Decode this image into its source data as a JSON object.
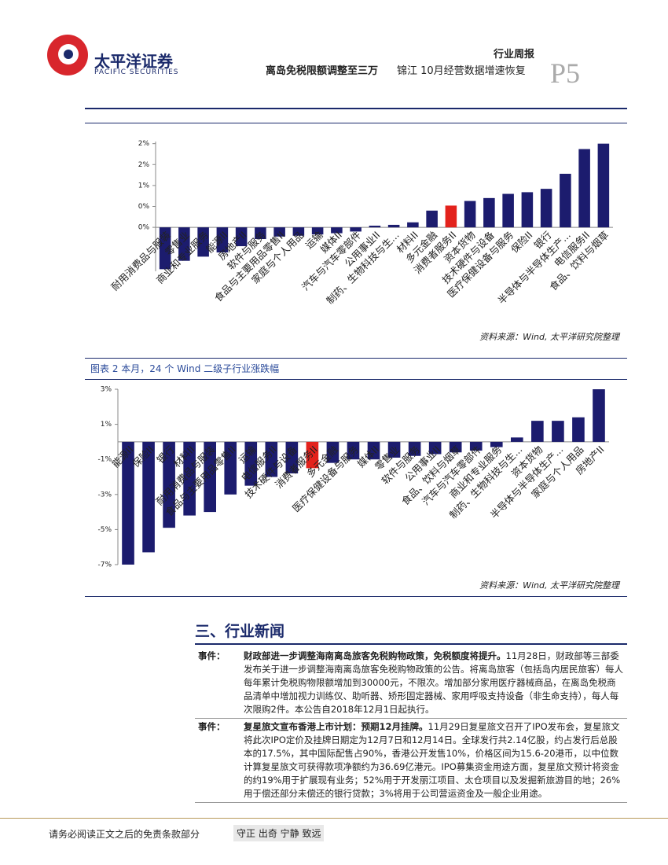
{
  "header": {
    "logo_cn": "太平洋证券",
    "logo_en": "PACIFIC SECURITIES",
    "report_type": "行业周报",
    "title": "离岛免税限额调整至三万",
    "subtitle": "锦江 10月经营数据增速恢复",
    "page": "P5"
  },
  "chart_data": [
    {
      "type": "bar",
      "source": "资料来源：Wind, 太平洋研究院整理",
      "categories": [
        "耐用消费品与服装",
        "零售业",
        "商业和专业服务",
        "能源II",
        "房地产II",
        "软件与服务",
        "食品与主要用品零售II",
        "家庭与个人用品",
        "运输",
        "媒体II",
        "汽车与汽车零部件",
        "公用事业II",
        "制药、生物科技与生...",
        "材料II",
        "多元金融",
        "消费者服务II",
        "资本货物",
        "技术硬件与设备",
        "医疗保健设备与服务",
        "保险II",
        "银行",
        "半导体与半导体生产...",
        "电信服务II",
        "食品、饮料与烟草"
      ],
      "values": [
        -1.0,
        -0.8,
        -0.7,
        -0.6,
        -0.45,
        -0.28,
        -0.22,
        -0.2,
        -0.17,
        -0.14,
        -0.1,
        0.04,
        0.06,
        0.12,
        0.4,
        0.52,
        0.63,
        0.7,
        0.8,
        0.84,
        0.92,
        1.28,
        1.87,
        2.0
      ],
      "colors": [
        "#1c1c6e",
        "#1c1c6e",
        "#1c1c6e",
        "#1c1c6e",
        "#1c1c6e",
        "#1c1c6e",
        "#1c1c6e",
        "#1c1c6e",
        "#1c1c6e",
        "#1c1c6e",
        "#1c1c6e",
        "#1c1c6e",
        "#1c1c6e",
        "#1c1c6e",
        "#1c1c6e",
        "#e3221c",
        "#1c1c6e",
        "#1c1c6e",
        "#1c1c6e",
        "#1c1c6e",
        "#1c1c6e",
        "#1c1c6e",
        "#1c1c6e",
        "#1c1c6e"
      ],
      "ylim": [
        -1.05,
        2.05
      ],
      "yticks": [
        {
          "value": 2.0,
          "label": "2%"
        },
        {
          "value": 1.5,
          "label": "2%"
        },
        {
          "value": 1.0,
          "label": "1%"
        },
        {
          "value": 0.5,
          "label": "0%"
        },
        {
          "value": 0.0,
          "label": "0%"
        }
      ]
    },
    {
      "type": "bar",
      "title": "图表 2 本月，24 个 Wind 二级子行业涨跌幅",
      "source": "资料来源：Wind, 太平洋研究院整理",
      "categories": [
        "能源II",
        "保险II",
        "银行",
        "材料II",
        "耐用消费品与服装",
        "食品与主要用品零售II",
        "运输",
        "电信服务II",
        "技术硬件与设备",
        "消费者服务II",
        "多元金融",
        "医疗保健设备与服务",
        "媒体II",
        "零售业",
        "软件与服务",
        "公用事业II",
        "食品、饮料与烟草",
        "汽车与汽车零部件",
        "商业和专业服务",
        "制药、生物科技与生...",
        "资本货物",
        "半导体与半导体生产...",
        "家庭与个人用品",
        "房地产II"
      ],
      "values": [
        -7.0,
        -6.3,
        -4.9,
        -4.2,
        -4.0,
        -3.0,
        -2.5,
        -2.0,
        -1.8,
        -1.5,
        -1.2,
        -1.0,
        -1.0,
        -0.9,
        -0.8,
        -0.7,
        -0.6,
        -0.5,
        -0.3,
        0.25,
        1.2,
        1.2,
        1.4,
        3.0
      ],
      "colors": [
        "#1c1c6e",
        "#1c1c6e",
        "#1c1c6e",
        "#1c1c6e",
        "#1c1c6e",
        "#1c1c6e",
        "#1c1c6e",
        "#1c1c6e",
        "#1c1c6e",
        "#e3221c",
        "#1c1c6e",
        "#1c1c6e",
        "#1c1c6e",
        "#1c1c6e",
        "#1c1c6e",
        "#1c1c6e",
        "#1c1c6e",
        "#1c1c6e",
        "#1c1c6e",
        "#1c1c6e",
        "#1c1c6e",
        "#1c1c6e",
        "#1c1c6e",
        "#1c1c6e"
      ],
      "ylim": [
        -7,
        3
      ],
      "yticks": [
        {
          "value": 3,
          "label": "3%"
        },
        {
          "value": 1,
          "label": "1%"
        },
        {
          "value": -1,
          "label": "-1%"
        },
        {
          "value": -3,
          "label": "-3%"
        },
        {
          "value": -5,
          "label": "-5%"
        },
        {
          "value": -7,
          "label": "-7%"
        }
      ]
    }
  ],
  "section": {
    "title": "三、行业新闻",
    "news": [
      {
        "label": "事件：",
        "headline": "财政部进一步调整海南离岛旅客免税购物政策，免税额度将提升。",
        "body": "11月28日，财政部等三部委发布关于进一步调整海南离岛旅客免税购物政策的公告。将离岛旅客（包括岛内居民旅客）每人每年累计免税购物限额增加到30000元，不限次。增加部分家用医疗器械商品，在离岛免税商品清单中增加视力训练仪、助听器、矫形固定器械、家用呼吸支持设备（非生命支持），每人每次限购2件。本公告自2018年12月1日起执行。"
      },
      {
        "label": "事件：",
        "headline": "复星旅文宣布香港上市计划：预期12月挂牌。",
        "body": "11月29日复星旅文召开了IPO发布会，复星旅文将此次IPO定价及挂牌日期定为12月7日和12月14日。全球发行共2.14亿股，约占发行后总股本的17.5%，其中国际配售占90%，香港公开发售10%，价格区间为15.6-20港币，以中位数计算复星旅文可获得款项净额约为36.69亿港元。IPO募集资金用途方面，复星旅文预计将资金的约19%用于扩展现有业务；52%用于开发丽江项目、太仓项目以及发掘新旅游目的地；26%用于偿还部分未偿还的银行贷款；3%将用于公司营运资金及一般企业用途。"
      }
    ]
  },
  "footer": {
    "disclaimer": "请务必阅读正文之后的免责条款部分",
    "motto": "守正 出奇 宁静 致远"
  }
}
